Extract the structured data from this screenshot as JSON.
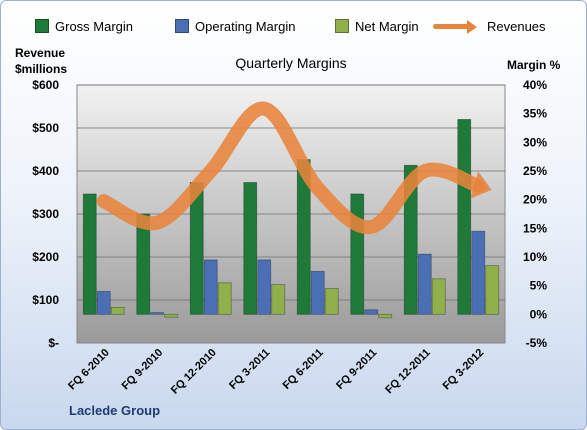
{
  "legend": {
    "items": [
      {
        "label": "Gross Margin",
        "color": "#1f7a3a",
        "kind": "bar"
      },
      {
        "label": "Operating Margin",
        "color": "#4a6fb5",
        "kind": "bar"
      },
      {
        "label": "Net Margin",
        "color": "#8fb04a",
        "kind": "bar"
      },
      {
        "label": "Revenues",
        "color": "#e8843a",
        "kind": "line"
      }
    ]
  },
  "axes": {
    "left_title": "Revenue\n$millions",
    "right_title": "Margin %"
  },
  "company": "Laclede Group",
  "chart_data": {
    "type": "bar",
    "title": "Quarterly Margins",
    "categories": [
      "FQ 6-2010",
      "FQ 9-2010",
      "FQ 12-2010",
      "FQ 3-2011",
      "FQ 6-2011",
      "FQ 9-2011",
      "FQ 12-2011",
      "FQ 3-2012"
    ],
    "left_axis": {
      "label": "Revenue $millions",
      "range": [
        0,
        600
      ],
      "ticks": [
        0,
        100,
        200,
        300,
        400,
        500,
        600
      ],
      "tick_labels": [
        "$-",
        "$100",
        "$200",
        "$300",
        "$400",
        "$500",
        "$600"
      ]
    },
    "right_axis": {
      "label": "Margin %",
      "range": [
        -5,
        40
      ],
      "ticks": [
        -5,
        0,
        5,
        10,
        15,
        20,
        25,
        30,
        35,
        40
      ],
      "tick_labels": [
        "-5%",
        "0%",
        "5%",
        "10%",
        "15%",
        "20%",
        "25%",
        "30%",
        "35%",
        "40%"
      ]
    },
    "series": [
      {
        "name": "Gross Margin",
        "axis": "right",
        "kind": "bar",
        "color": "#1f7a3a",
        "values": [
          21,
          17.5,
          23,
          23,
          27,
          21,
          26,
          34
        ]
      },
      {
        "name": "Operating Margin",
        "axis": "right",
        "kind": "bar",
        "color": "#4a6fb5",
        "values": [
          4,
          0.3,
          9.5,
          9.5,
          7.5,
          0.8,
          10.5,
          14.5
        ]
      },
      {
        "name": "Net Margin",
        "axis": "right",
        "kind": "bar",
        "color": "#8fb04a",
        "values": [
          1.2,
          -0.5,
          5.5,
          5.2,
          4.5,
          -0.6,
          6.2,
          8.5
        ]
      },
      {
        "name": "Revenues",
        "axis": "left",
        "kind": "line",
        "color": "#e8843a",
        "values": [
          330,
          280,
          400,
          545,
          360,
          270,
          400,
          365
        ]
      }
    ],
    "grid": true,
    "legend_position": "top"
  }
}
